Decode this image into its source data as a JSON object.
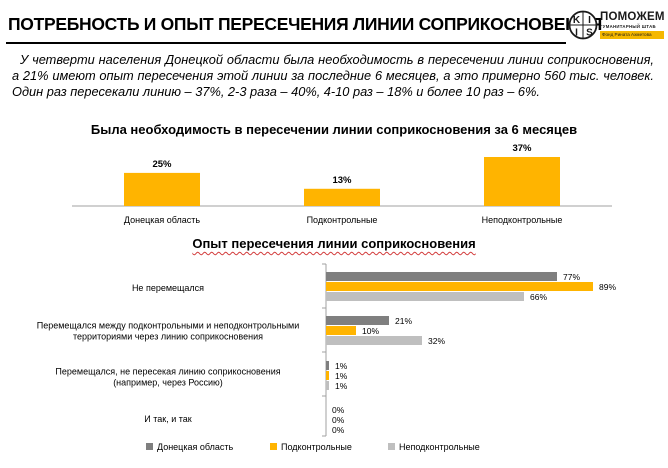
{
  "header": {
    "title": "ПОТРЕБНОСТЬ И ОПЫТ ПЕРЕСЕЧЕНИЯ ЛИНИИ СОПРИКОСНОВЕНИЯ",
    "kiis_logo_text": "KIIS",
    "partner_logo": {
      "name": "ПОМОЖЕМ",
      "subtitle": "ГУМАНИТАРНЫЙ ШТАБ",
      "fund": "Фонд Рината Ахметова"
    }
  },
  "intro_text": "У четверти населения Донецкой области была необходимость в пересечении линии соприкосновения, а 21% имеют опыт пересечения этой линии за последние 6 месяцев, а это примерно 560 тыс. человек. Один раз пересекали линию – 37%, 2-3 раза – 40%, 4-10 раз – 18% и более 10 раз – 6%.",
  "colors": {
    "dark_gray": "#7f7f7f",
    "orange": "#ffb400",
    "light_gray": "#bfbfbf",
    "axis": "#a0a0a0",
    "red_underline": "#d23a3a"
  },
  "chart_data": [
    {
      "type": "bar",
      "title": "Была необходимость в пересечении линии соприкосновения за 6 месяцев",
      "categories": [
        "Донецкая область",
        "Подконтрольные",
        "Неподконтрольные"
      ],
      "values": [
        25,
        13,
        37
      ],
      "data_labels": [
        "25%",
        "13%",
        "37%"
      ],
      "unit": "%",
      "ylim": [
        0,
        40
      ],
      "grid": false,
      "color": "#ffb400"
    },
    {
      "type": "bar",
      "orientation": "horizontal",
      "title": "Опыт пересечения линии соприкосновения",
      "categories": [
        [
          "Не перемещался"
        ],
        [
          "Перемещался между подконтрольными и неподконтрольными",
          "территориями через линию соприкосновения"
        ],
        [
          "Перемещался, не пересекая линию соприкосновения",
          "(например, через Россию)"
        ],
        [
          "И так, и так"
        ]
      ],
      "series": [
        {
          "name": "Донецкая область",
          "values": [
            77,
            21,
            1,
            0
          ],
          "labels": [
            "77%",
            "21%",
            "1%",
            "0%"
          ],
          "color": "#7f7f7f"
        },
        {
          "name": "Подконтрольные",
          "values": [
            89,
            10,
            1,
            0
          ],
          "labels": [
            "89%",
            "10%",
            "1%",
            "0%"
          ],
          "color": "#ffb400"
        },
        {
          "name": "Неподконтрольные",
          "values": [
            66,
            32,
            1,
            0
          ],
          "labels": [
            "66%",
            "32%",
            "1%",
            "0%"
          ],
          "color": "#bfbfbf"
        }
      ],
      "unit": "%",
      "xlim": [
        0,
        100
      ],
      "grid": false,
      "legend": "bottom"
    }
  ]
}
